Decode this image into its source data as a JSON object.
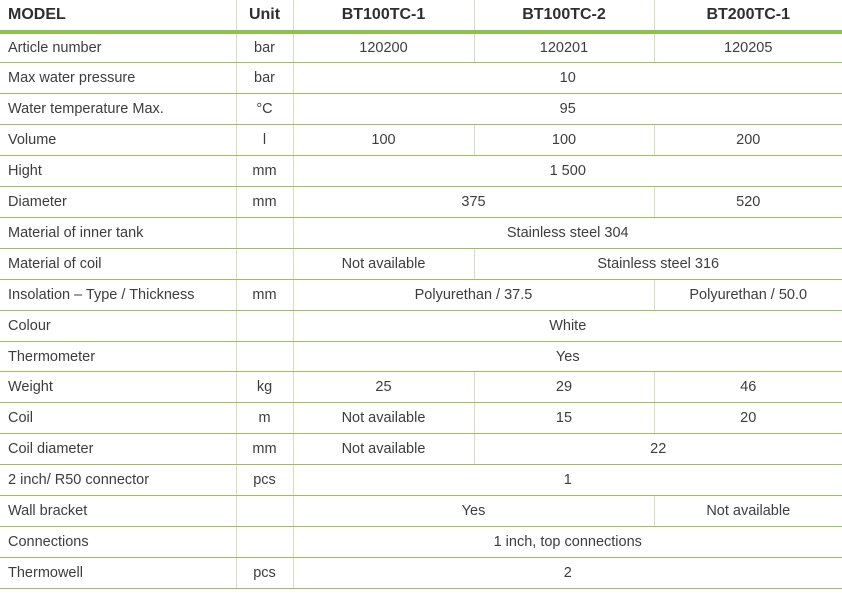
{
  "table": {
    "columns": [
      {
        "label": "MODEL"
      },
      {
        "label": "Unit"
      },
      {
        "label": "BT100TC-1"
      },
      {
        "label": "BT100TC-2"
      },
      {
        "label": "BT200TC-1"
      }
    ],
    "rows": [
      {
        "label": "Article number",
        "unit": "bar",
        "cells": [
          {
            "text": "120200",
            "span": 1
          },
          {
            "text": "120201",
            "span": 1
          },
          {
            "text": "120205",
            "span": 1
          }
        ]
      },
      {
        "label": "Max water pressure",
        "unit": "bar",
        "cells": [
          {
            "text": "10",
            "span": 3
          }
        ]
      },
      {
        "label": "Water temperature Max.",
        "unit": "°C",
        "cells": [
          {
            "text": "95",
            "span": 3
          }
        ]
      },
      {
        "label": "Volume",
        "unit": "l",
        "cells": [
          {
            "text": "100",
            "span": 1
          },
          {
            "text": "100",
            "span": 1
          },
          {
            "text": "200",
            "span": 1
          }
        ]
      },
      {
        "label": "Hight",
        "unit": "mm",
        "cells": [
          {
            "text": "1 500",
            "span": 3
          }
        ]
      },
      {
        "label": "Diameter",
        "unit": "mm",
        "cells": [
          {
            "text": "375",
            "span": 2
          },
          {
            "text": "520",
            "span": 1
          }
        ]
      },
      {
        "label": "Material of inner tank",
        "unit": "",
        "cells": [
          {
            "text": "Stainless steel 304",
            "span": 3
          }
        ]
      },
      {
        "label": "Material of coil",
        "unit": "",
        "cells": [
          {
            "text": "Not available",
            "span": 1
          },
          {
            "text": "Stainless steel 316",
            "span": 2
          }
        ]
      },
      {
        "label": "Insolation – Type / Thickness",
        "unit": "mm",
        "cells": [
          {
            "text": "Polyurethan / 37.5",
            "span": 2
          },
          {
            "text": "Polyurethan / 50.0",
            "span": 1
          }
        ]
      },
      {
        "label": "Colour",
        "unit": "",
        "cells": [
          {
            "text": "White",
            "span": 3
          }
        ]
      },
      {
        "label": "Thermometer",
        "unit": "",
        "cells": [
          {
            "text": "Yes",
            "span": 3
          }
        ]
      },
      {
        "label": "Weight",
        "unit": "kg",
        "cells": [
          {
            "text": "25",
            "span": 1
          },
          {
            "text": "29",
            "span": 1
          },
          {
            "text": "46",
            "span": 1
          }
        ]
      },
      {
        "label": "Coil",
        "unit": "m",
        "cells": [
          {
            "text": "Not available",
            "span": 1
          },
          {
            "text": "15",
            "span": 1
          },
          {
            "text": "20",
            "span": 1
          }
        ]
      },
      {
        "label": "Coil diameter",
        "unit": "mm",
        "cells": [
          {
            "text": "Not available",
            "span": 1
          },
          {
            "text": "22",
            "span": 2
          }
        ]
      },
      {
        "label": "2 inch/ R50 connector",
        "unit": "pcs",
        "cells": [
          {
            "text": "1",
            "span": 3
          }
        ]
      },
      {
        "label": "Wall bracket",
        "unit": "",
        "cells": [
          {
            "text": "Yes",
            "span": 2
          },
          {
            "text": "Not available",
            "span": 1
          }
        ]
      },
      {
        "label": "Connections",
        "unit": "",
        "cells": [
          {
            "text": "1 inch, top connections",
            "span": 3
          }
        ]
      },
      {
        "label": "Thermowell",
        "unit": "pcs",
        "cells": [
          {
            "text": "2",
            "span": 3
          }
        ]
      }
    ],
    "colors": {
      "accent_green": "#8cc152",
      "rule_green": "#a3bc5d",
      "divider": "#d8dcbe",
      "header_text": "#2e2e2e",
      "body_text": "#3d3d3d"
    }
  }
}
